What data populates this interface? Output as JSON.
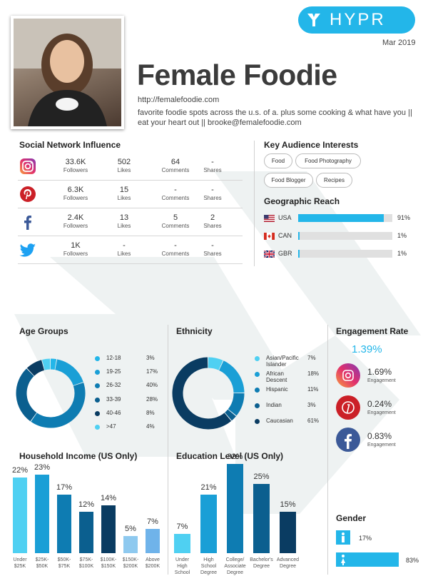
{
  "header": {
    "logo_text": "HYPR",
    "date": "Mar 2019"
  },
  "profile": {
    "name": "Female Foodie",
    "url": "http://femalefoodie.com",
    "bio": "favorite foodie spots across the u.s. of a. plus some cooking & what have you || eat your heart out || brooke@femalefoodie.com"
  },
  "social": {
    "title": "Social Network Influence",
    "labels": {
      "followers": "Followers",
      "likes": "Likes",
      "comments": "Comments",
      "shares": "Shares"
    },
    "rows": [
      {
        "network": "instagram-icon",
        "followers": "33.6K",
        "likes": "502",
        "comments": "64",
        "shares": "-"
      },
      {
        "network": "pinterest-icon",
        "followers": "6.3K",
        "likes": "15",
        "comments": "-",
        "shares": "-"
      },
      {
        "network": "facebook-icon",
        "followers": "2.4K",
        "likes": "13",
        "comments": "5",
        "shares": "2"
      },
      {
        "network": "twitter-icon",
        "followers": "1K",
        "likes": "-",
        "comments": "-",
        "shares": "-"
      }
    ]
  },
  "interests": {
    "title": "Key Audience Interests",
    "tags": [
      "Food",
      "Food Photography",
      "Food Blogger",
      "Recipes"
    ]
  },
  "geo": {
    "title": "Geographic Reach",
    "rows": [
      {
        "code": "USA",
        "pct_label": "91%",
        "value": 91
      },
      {
        "code": "CAN",
        "pct_label": "1%",
        "value": 1
      },
      {
        "code": "GBR",
        "pct_label": "1%",
        "value": 1
      }
    ]
  },
  "age": {
    "title": "Age Groups",
    "items": [
      {
        "label": "12-18",
        "pct": "3%",
        "value": 3,
        "color": "#23b6e9"
      },
      {
        "label": "19-25",
        "pct": "17%",
        "value": 17,
        "color": "#1a9fd6"
      },
      {
        "label": "26-32",
        "pct": "40%",
        "value": 40,
        "color": "#0e7cb2"
      },
      {
        "label": "33-39",
        "pct": "28%",
        "value": 28,
        "color": "#0b5f8f"
      },
      {
        "label": "40-46",
        "pct": "8%",
        "value": 8,
        "color": "#0a3c62"
      },
      {
        "label": ">47",
        "pct": "4%",
        "value": 4,
        "color": "#4fd0f2"
      }
    ]
  },
  "ethnicity": {
    "title": "Ethnicity",
    "items": [
      {
        "label": "Asian/Pacific Islander",
        "pct": "7%",
        "value": 7,
        "color": "#4fd0f2"
      },
      {
        "label": "African Descent",
        "pct": "18%",
        "value": 18,
        "color": "#1a9fd6"
      },
      {
        "label": "Hispanic",
        "pct": "11%",
        "value": 11,
        "color": "#0e7cb2"
      },
      {
        "label": "Indian",
        "pct": "3%",
        "value": 3,
        "color": "#0b5f8f"
      },
      {
        "label": "Caucasian",
        "pct": "61%",
        "value": 61,
        "color": "#0a3c62"
      }
    ]
  },
  "engagement": {
    "title": "Engagement Rate",
    "overall": "1.39%",
    "sub_label": "Engagement",
    "items": [
      {
        "network": "instagram-icon",
        "value": "1.69%"
      },
      {
        "network": "pinterest-icon",
        "value": "0.24%"
      },
      {
        "network": "facebook-icon",
        "value": "0.83%"
      }
    ]
  },
  "income": {
    "title": "Household Income (US Only)",
    "bars": [
      {
        "pct": "22%",
        "value": 22,
        "cat": [
          "Under",
          "$25K"
        ],
        "color": "#4fd0f2"
      },
      {
        "pct": "23%",
        "value": 23,
        "cat": [
          "$25K-",
          "$50K"
        ],
        "color": "#1a9fd6"
      },
      {
        "pct": "17%",
        "value": 17,
        "cat": [
          "$50K-",
          "$75K"
        ],
        "color": "#0e7cb2"
      },
      {
        "pct": "12%",
        "value": 12,
        "cat": [
          "$75K-",
          "$100K"
        ],
        "color": "#0b5f8f"
      },
      {
        "pct": "14%",
        "value": 14,
        "cat": [
          "$100K-",
          "$150K"
        ],
        "color": "#0a3c62"
      },
      {
        "pct": "5%",
        "value": 5,
        "cat": [
          "$150K-",
          "$200K"
        ],
        "color": "#8ec9ef"
      },
      {
        "pct": "7%",
        "value": 7,
        "cat": [
          "Above",
          "$200K"
        ],
        "color": "#6fb3ea"
      }
    ]
  },
  "education": {
    "title": "Education Level (US Only)",
    "bars": [
      {
        "pct": "7%",
        "value": 7,
        "cat": [
          "Under",
          "High",
          "School"
        ],
        "color": "#4fd0f2"
      },
      {
        "pct": "21%",
        "value": 21,
        "cat": [
          "High",
          "School",
          "Degree"
        ],
        "color": "#1a9fd6"
      },
      {
        "pct": "32%",
        "value": 32,
        "cat": [
          "College/",
          "Associate",
          "Degree"
        ],
        "color": "#0e7cb2"
      },
      {
        "pct": "25%",
        "value": 25,
        "cat": [
          "Bachelor's",
          "Degree"
        ],
        "color": "#0b5f8f"
      },
      {
        "pct": "15%",
        "value": 15,
        "cat": [
          "Advanced",
          "Degree"
        ],
        "color": "#0a3c62"
      }
    ]
  },
  "gender": {
    "title": "Gender",
    "rows": [
      {
        "icon": "male-icon",
        "pct": "17%",
        "value": 17
      },
      {
        "icon": "female-icon",
        "pct": "83%",
        "value": 83
      }
    ]
  }
}
